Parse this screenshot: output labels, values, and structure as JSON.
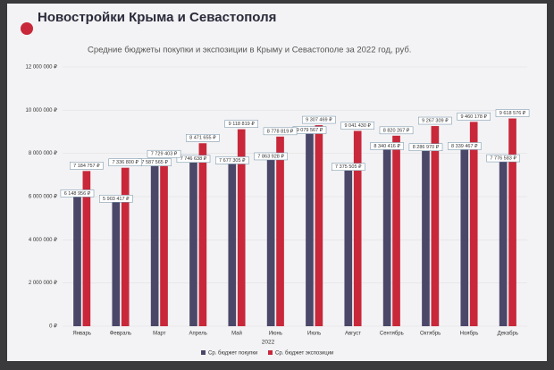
{
  "chart_data": {
    "type": "bar",
    "title": "Новостройки Крыма и Севастополя",
    "subtitle": "Средние бюджеты покупки и экспозиции в Крыму и Севастополе за 2022 год, руб.",
    "x_label": "2022",
    "categories": [
      "Январь",
      "Февраль",
      "Март",
      "Апрель",
      "Май",
      "Июнь",
      "Июль",
      "Август",
      "Сентябрь",
      "Октябрь",
      "Ноябрь",
      "Декабрь"
    ],
    "series": [
      {
        "name": "Ср. бюджет покупки",
        "color": "#4a4768",
        "values": [
          6148956,
          5903417,
          7587565,
          7746638,
          7677305,
          7863928,
          9079567,
          7375505,
          8340416,
          8286970,
          8339467,
          7776583
        ],
        "value_labels": [
          "6 148 956 ₽",
          "5 903 417 ₽",
          "7 587 565 ₽",
          "7 746 638 ₽",
          "7 677 305 ₽",
          "7 863 928 ₽",
          "9 079 567 ₽",
          "7 375 505 ₽",
          "8 340 416 ₽",
          "8 286 970 ₽",
          "8 339 467 ₽",
          "7 776 583 ₽"
        ]
      },
      {
        "name": "Ср. бюджет экспозиции",
        "color": "#c8283a",
        "values": [
          7184757,
          7336800,
          7729403,
          8471655,
          9118819,
          8778819,
          9307469,
          9041430,
          8820267,
          9267309,
          9460178,
          9618576
        ],
        "value_labels": [
          "7 184 757 ₽",
          "7 336 800 ₽",
          "7 729 403 ₽",
          "8 471 655 ₽",
          "9 118 819 ₽",
          "8 778 819 ₽",
          "9 307 469 ₽",
          "9 041 430 ₽",
          "8 820 267 ₽",
          "9 267 309 ₽",
          "9 460 178 ₽",
          "9 618 576 ₽"
        ]
      }
    ],
    "ylim": [
      0,
      12000000
    ],
    "yticks": [
      {
        "value": 0,
        "label": "0 ₽"
      },
      {
        "value": 2000000,
        "label": "2 000 000 ₽"
      },
      {
        "value": 4000000,
        "label": "4 000 000 ₽"
      },
      {
        "value": 6000000,
        "label": "6 000 000 ₽"
      },
      {
        "value": 8000000,
        "label": "8 000 000 ₽"
      },
      {
        "value": 10000000,
        "label": "10 000 000 ₽"
      },
      {
        "value": 12000000,
        "label": "12 000 000 ₽"
      }
    ],
    "grid": true
  }
}
